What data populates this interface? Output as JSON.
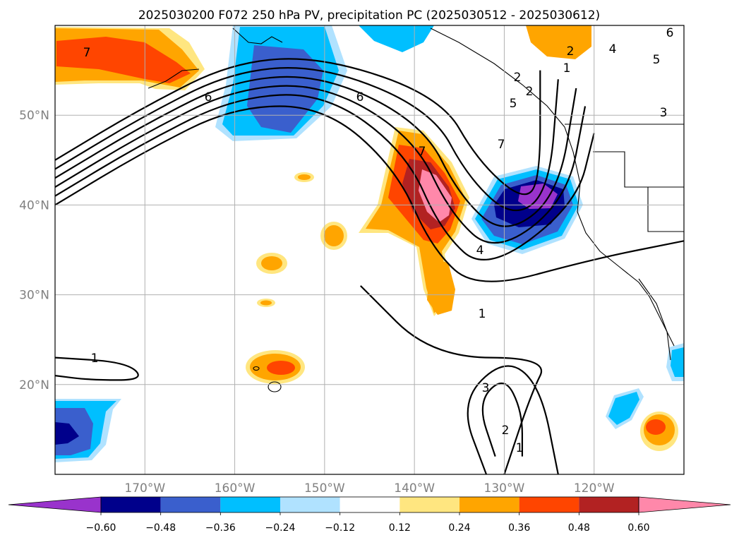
{
  "chart_data": {
    "type": "heatmap",
    "title": "2025030200 F072 250 hPa PV, precipitation PC (2025030512 - 2025030612)",
    "map_extent": {
      "lon": [
        -180,
        -110
      ],
      "lat": [
        10,
        60
      ]
    },
    "lon_ticks": [
      {
        "value": -170,
        "label": "170°W"
      },
      {
        "value": -160,
        "label": "160°W"
      },
      {
        "value": -150,
        "label": "150°W"
      },
      {
        "value": -140,
        "label": "140°W"
      },
      {
        "value": -130,
        "label": "130°W"
      },
      {
        "value": -120,
        "label": "120°W"
      }
    ],
    "lat_ticks": [
      {
        "value": 20,
        "label": "20°N"
      },
      {
        "value": 30,
        "label": "30°N"
      },
      {
        "value": 40,
        "label": "40°N"
      },
      {
        "value": 50,
        "label": "50°N"
      }
    ],
    "grid": true,
    "colorbar": {
      "extend": "both",
      "levels": [
        -0.6,
        -0.48,
        -0.36,
        -0.24,
        -0.12,
        0.12,
        0.24,
        0.36,
        0.48,
        0.6
      ],
      "tick_labels": [
        "−0.60",
        "−0.48",
        "−0.36",
        "−0.24",
        "−0.12",
        "0.12",
        "0.24",
        "0.36",
        "0.48",
        "0.60"
      ],
      "colors": [
        "#9933cc",
        "#00008b",
        "#3a5fcd",
        "#00bfff",
        "#b0e2ff",
        "#ffffff",
        "#ffe680",
        "#ffa500",
        "#ff4500",
        "#b22222",
        "#ff88aa"
      ]
    },
    "precip_features": [
      {
        "lon": -170,
        "lat": 55.5,
        "value": 0.45
      },
      {
        "lon": -155,
        "lat": 52,
        "value": -0.4
      },
      {
        "lon": -140,
        "lat": 40.5,
        "value": 0.6
      },
      {
        "lon": -127,
        "lat": 40.5,
        "value": -0.62
      },
      {
        "lon": -148,
        "lat": 37.5,
        "value": 0.3
      },
      {
        "lon": -156,
        "lat": 33.5,
        "value": 0.25
      },
      {
        "lon": -154,
        "lat": 22,
        "value": 0.4
      },
      {
        "lon": -137.5,
        "lat": 29,
        "value": 0.3
      },
      {
        "lon": -177,
        "lat": 14.5,
        "value": -0.5
      },
      {
        "lon": -112,
        "lat": 15,
        "value": 0.4
      },
      {
        "lon": -116,
        "lat": 16.5,
        "value": -0.25
      },
      {
        "lon": -122,
        "lat": 58,
        "value": 0.3
      },
      {
        "lon": -111,
        "lat": 24.5,
        "value": -0.25
      }
    ],
    "pv_contour_labels": [
      "7",
      "6",
      "6",
      "7",
      "7",
      "4",
      "1",
      "1",
      "3",
      "2",
      "1",
      "2",
      "1",
      "5",
      "5",
      "4",
      "3",
      "2",
      "2",
      "6"
    ],
    "pv_contours": [
      {
        "level": 1,
        "points": [
          [
            -180,
            40
          ],
          [
            -170,
            46
          ],
          [
            -160,
            51
          ],
          [
            -150,
            51
          ],
          [
            -142,
            44
          ],
          [
            -138,
            35
          ],
          [
            -133,
            30.5
          ],
          [
            -120,
            34
          ],
          [
            -110,
            36
          ]
        ]
      },
      {
        "level": 2,
        "points": [
          [
            -180,
            41
          ],
          [
            -170,
            47
          ],
          [
            -160,
            52
          ],
          [
            -150,
            52.5
          ],
          [
            -141,
            46
          ],
          [
            -137,
            37
          ],
          [
            -132,
            32.5
          ],
          [
            -122,
            40
          ],
          [
            -120,
            48
          ]
        ]
      },
      {
        "level": 3,
        "points": [
          [
            -180,
            42
          ],
          [
            -170,
            48
          ],
          [
            -160,
            53
          ],
          [
            -150,
            53.5
          ],
          [
            -140,
            47.5
          ],
          [
            -136,
            39
          ],
          [
            -131,
            34.5
          ],
          [
            -123,
            40.5
          ],
          [
            -121,
            51
          ]
        ]
      },
      {
        "level": 4,
        "points": [
          [
            -180,
            43
          ],
          [
            -170,
            49
          ],
          [
            -160,
            54
          ],
          [
            -150,
            54.5
          ],
          [
            -139,
            49
          ],
          [
            -135,
            41
          ],
          [
            -130,
            36.5
          ],
          [
            -124,
            41
          ],
          [
            -122,
            53
          ]
        ]
      },
      {
        "level": 5,
        "points": [
          [
            -180,
            44
          ],
          [
            -170,
            50
          ],
          [
            -160,
            55
          ],
          [
            -150,
            55.5
          ],
          [
            -138,
            50.5
          ],
          [
            -134,
            43
          ],
          [
            -129,
            38.5
          ],
          [
            -125,
            41.5
          ],
          [
            -124,
            54
          ]
        ]
      },
      {
        "level": 6,
        "points": [
          [
            -180,
            45
          ],
          [
            -170,
            51
          ],
          [
            -160,
            56
          ],
          [
            -150,
            56.5
          ],
          [
            -137,
            52
          ],
          [
            -133,
            45
          ],
          [
            -128,
            40.5
          ],
          [
            -126,
            42.5
          ],
          [
            -126,
            55
          ]
        ]
      },
      {
        "level": 1,
        "points": [
          [
            -180,
            23
          ],
          [
            -172,
            22.5
          ],
          [
            -170,
            20.5
          ],
          [
            -176,
            20.5
          ],
          [
            -180,
            21
          ]
        ]
      },
      {
        "level": 1,
        "points": [
          [
            -146,
            31
          ],
          [
            -138,
            23
          ],
          [
            -125,
            23
          ],
          [
            -127,
            19
          ],
          [
            -130,
            10
          ]
        ]
      },
      {
        "level": 2,
        "points": [
          [
            -132,
            10
          ],
          [
            -135,
            18
          ],
          [
            -130,
            23
          ],
          [
            -126,
            20
          ],
          [
            -124,
            10
          ]
        ]
      },
      {
        "level": 3,
        "points": [
          [
            -131,
            12
          ],
          [
            -133,
            18
          ],
          [
            -130,
            21
          ],
          [
            -128,
            17
          ],
          [
            -128,
            12
          ]
        ]
      }
    ]
  }
}
